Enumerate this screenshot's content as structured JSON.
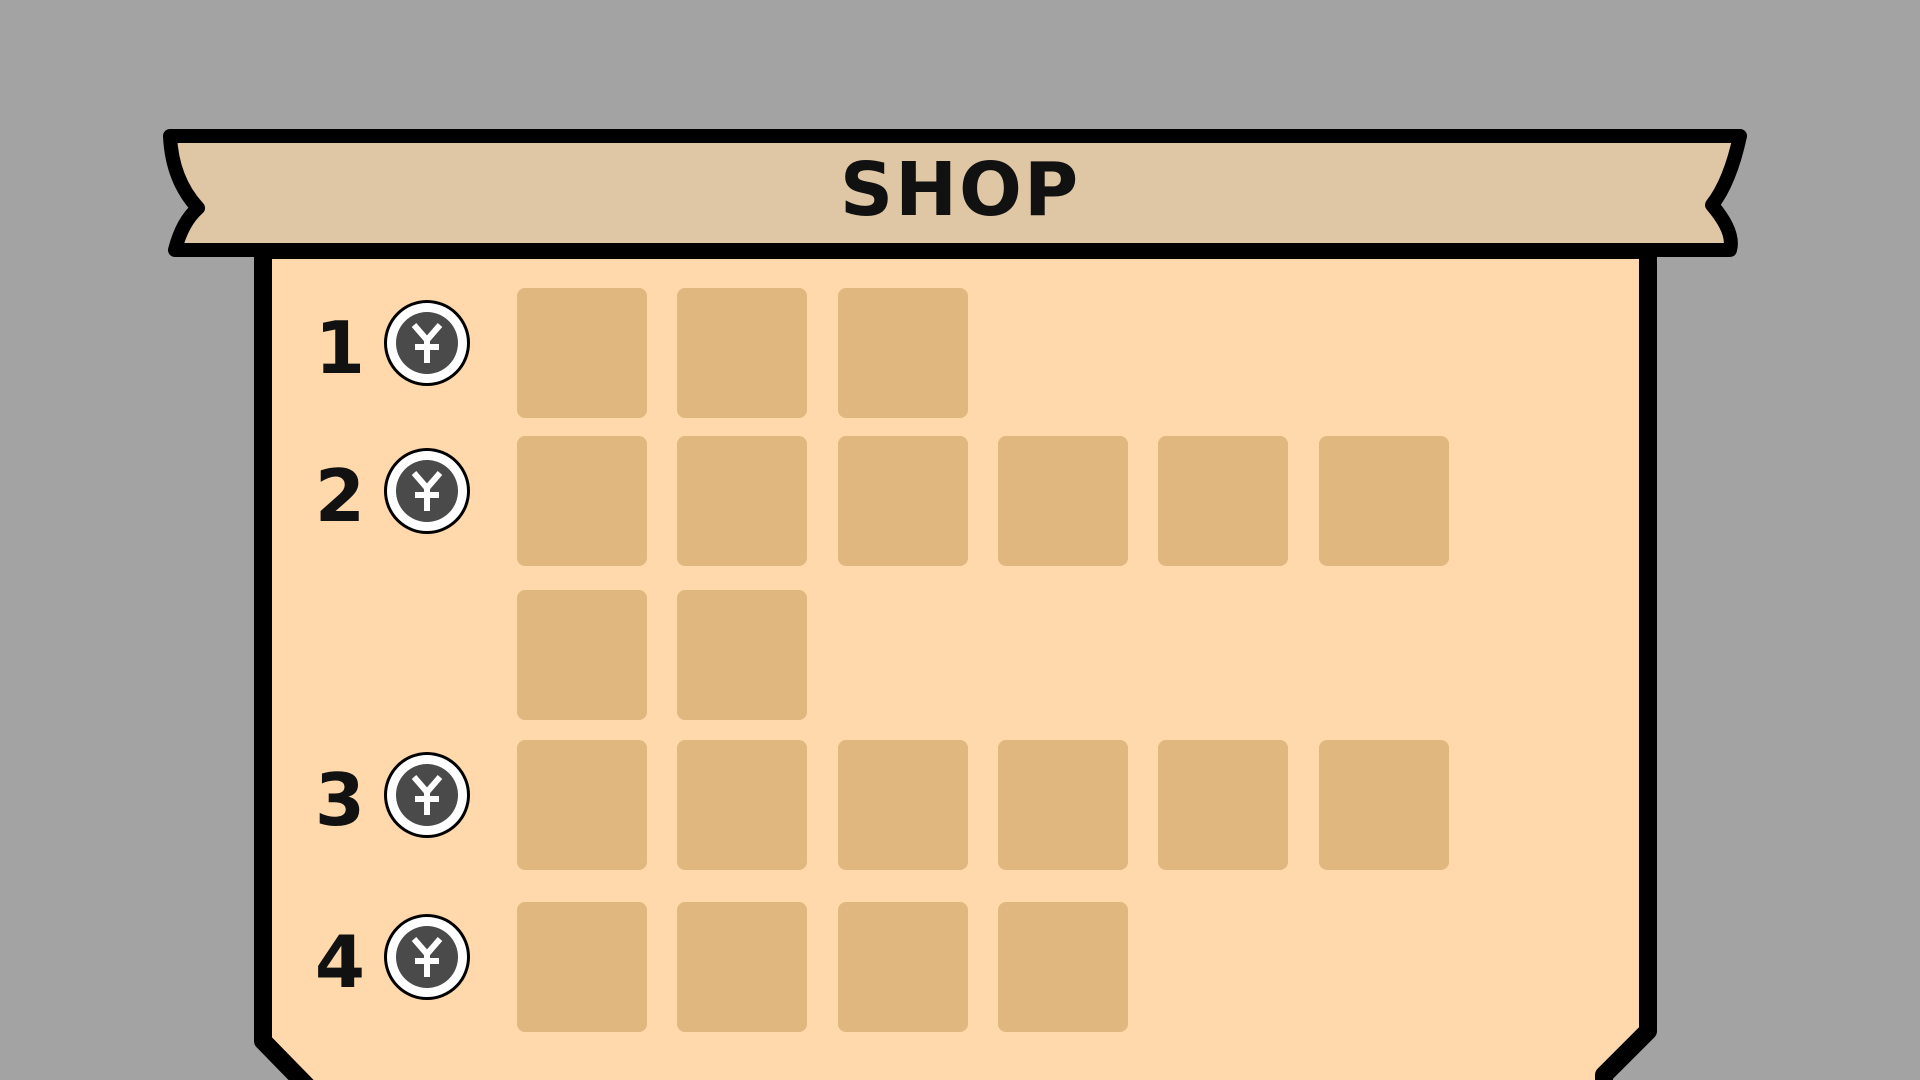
{
  "shop": {
    "title": "SHOP",
    "colors": {
      "background": "#a3a3a3",
      "panel": "#ffd9ab",
      "banner": "#dfc6a5",
      "slot": "#e0b87f",
      "coin_inner": "#4a4a4a",
      "outline": "#000000"
    },
    "coin_icon": "yen-coin-icon",
    "tiers": [
      {
        "label": "1",
        "slots": 3
      },
      {
        "label": "2",
        "slots": 8
      },
      {
        "label": "3",
        "slots": 6
      },
      {
        "label": "4",
        "slots": 4
      }
    ]
  }
}
